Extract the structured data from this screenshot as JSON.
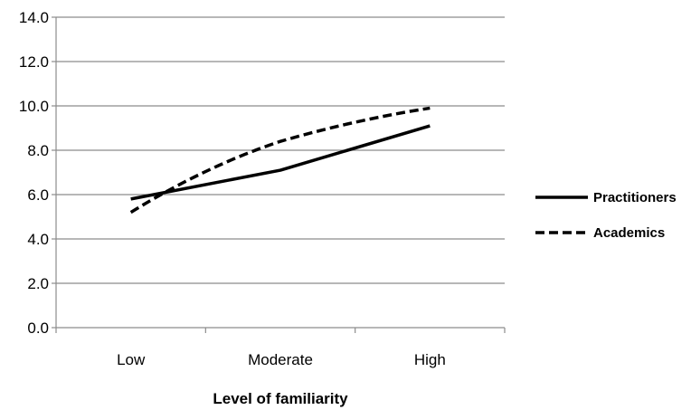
{
  "chart_data": {
    "type": "line",
    "title": "",
    "xlabel": "Level of familiarity",
    "ylabel": "",
    "categories": [
      "Low",
      "Moderate",
      "High"
    ],
    "ylim": [
      0,
      14
    ],
    "yticks": [
      "0.0",
      "2.0",
      "4.0",
      "6.0",
      "8.0",
      "10.0",
      "12.0",
      "14.0"
    ],
    "grid": true,
    "legend_position": "right",
    "series": [
      {
        "name": "Practitioners",
        "values": [
          5.8,
          7.1,
          9.1
        ],
        "line_style": "solid",
        "color": "#000000"
      },
      {
        "name": "Academics",
        "values": [
          5.2,
          8.4,
          9.9
        ],
        "line_style": "dashed",
        "color": "#000000"
      }
    ]
  }
}
